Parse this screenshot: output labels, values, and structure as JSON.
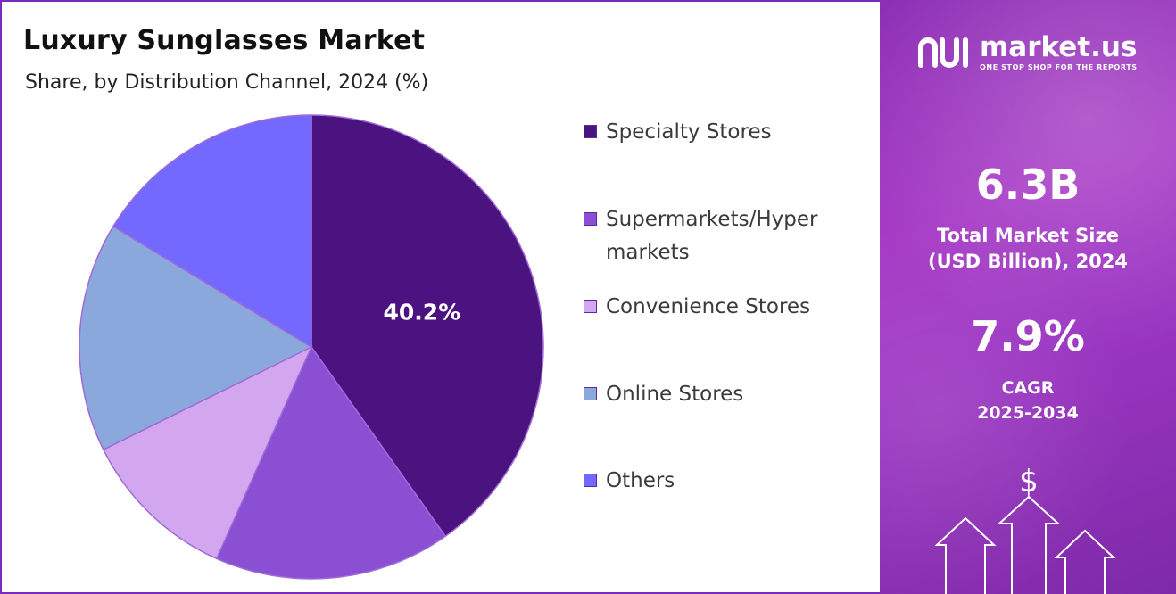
{
  "chart_data": {
    "type": "pie",
    "title": "Luxury Sunglasses Market",
    "subtitle": "Share, by Distribution Channel, 2024 (%)",
    "series": [
      {
        "name": "Specialty Stores",
        "value": 40.2,
        "label": "40.2%",
        "color": "#4b1380"
      },
      {
        "name": "Supermarkets/Hyper markets",
        "value": 16.5,
        "label": "",
        "color": "#8b4fd4"
      },
      {
        "name": "Convenience Stores",
        "value": 11.0,
        "label": "",
        "color": "#d3a7ef"
      },
      {
        "name": "Online Stores",
        "value": 16.0,
        "label": "",
        "color": "#8ba8dc"
      },
      {
        "name": "Others",
        "value": 16.3,
        "label": "",
        "color": "#7469fe"
      }
    ],
    "legend_position": "right"
  },
  "legend": {
    "items": [
      "Specialty Stores",
      "Supermarkets/Hyper markets",
      "Convenience Stores",
      "Online Stores",
      "Others"
    ]
  },
  "brand": {
    "name": "market.us",
    "tagline": "ONE STOP SHOP FOR THE REPORTS"
  },
  "stats": {
    "market_size_value": "6.3B",
    "market_size_label_line1": "Total Market Size",
    "market_size_label_line2": "(USD Billion), 2024",
    "cagr_value": "7.9%",
    "cagr_label_line1": "CAGR",
    "cagr_label_line2": "2025-2034"
  },
  "icons": {
    "brand_logo": "market-us-logo-icon",
    "dollar": "dollar-sign-icon",
    "arrows": "growth-arrows-icon"
  },
  "dollar_symbol": "$"
}
